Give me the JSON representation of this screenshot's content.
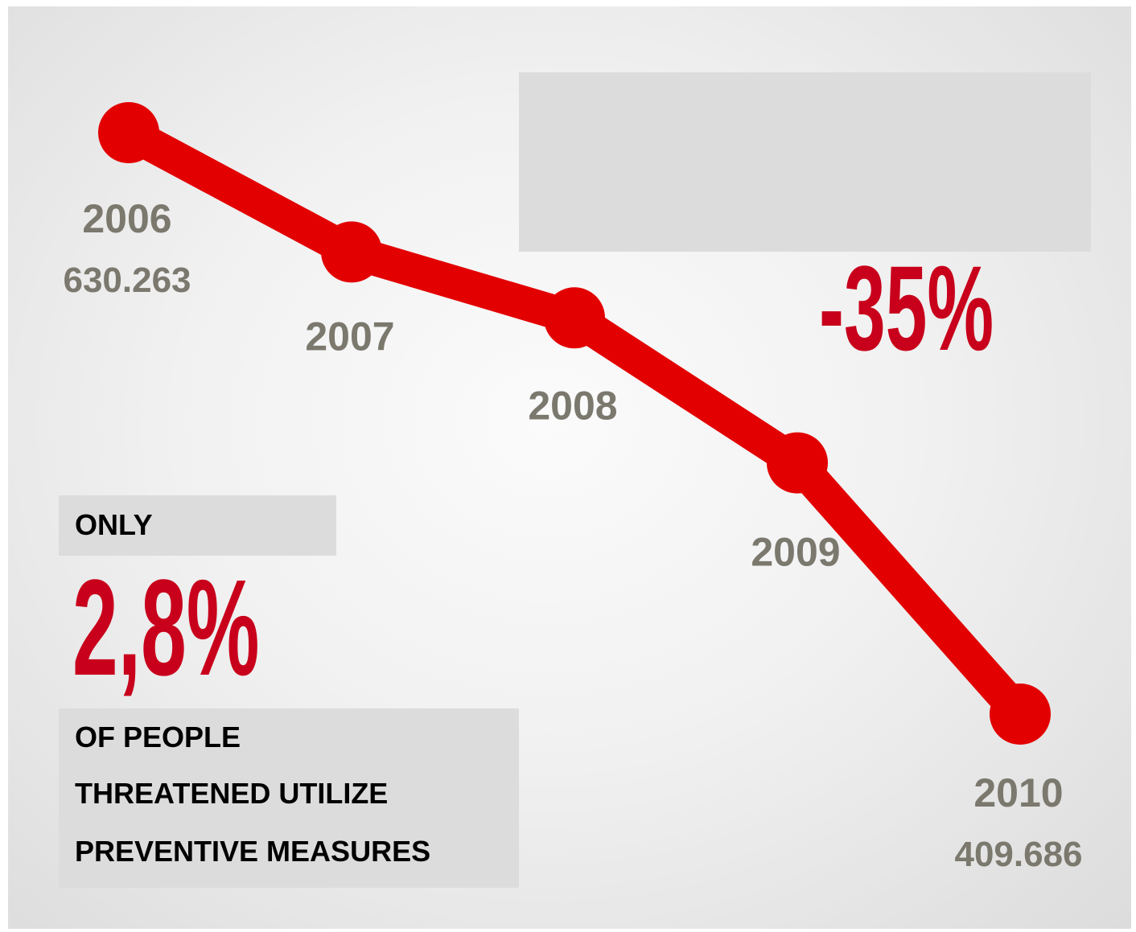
{
  "colors": {
    "accent": "#c8001b",
    "line": "#e30000",
    "label_gray": "#7b786e",
    "box_gray": "#dcdcdc"
  },
  "chart_data": {
    "type": "line",
    "x": [
      "2006",
      "2007",
      "2008",
      "2009",
      "2010"
    ],
    "series": [
      {
        "values": [
          630263,
          585000,
          560000,
          505000,
          409686
        ]
      }
    ],
    "value_labels": [
      "630.263",
      "",
      "",
      "",
      "409.686"
    ],
    "grid": false,
    "axes_visible": false
  },
  "stats": {
    "decline": "-35%",
    "only": "ONLY",
    "share": "2,8%",
    "caption_lines": [
      "OF PEOPLE",
      "THREATENED UTILIZE",
      "PREVENTIVE MEASURES"
    ]
  }
}
